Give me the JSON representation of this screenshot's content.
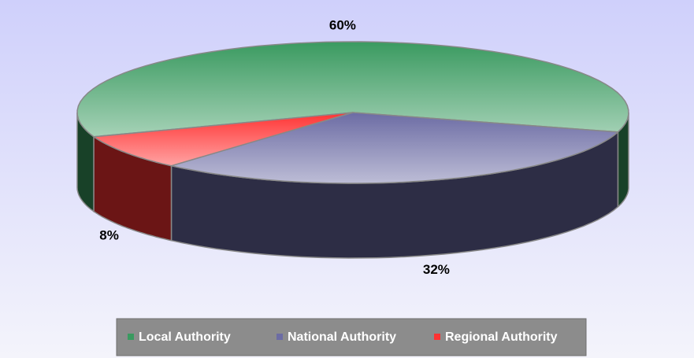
{
  "chart_data": {
    "type": "pie",
    "categories": [
      "Local Authority",
      "National Authority",
      "Regional Authority"
    ],
    "values": [
      60,
      32,
      8
    ],
    "value_labels": [
      "60%",
      "32%",
      "8%"
    ],
    "colors": [
      "#3a9a60",
      "#6c6ca4",
      "#ff3333"
    ],
    "legend": "bottom"
  }
}
